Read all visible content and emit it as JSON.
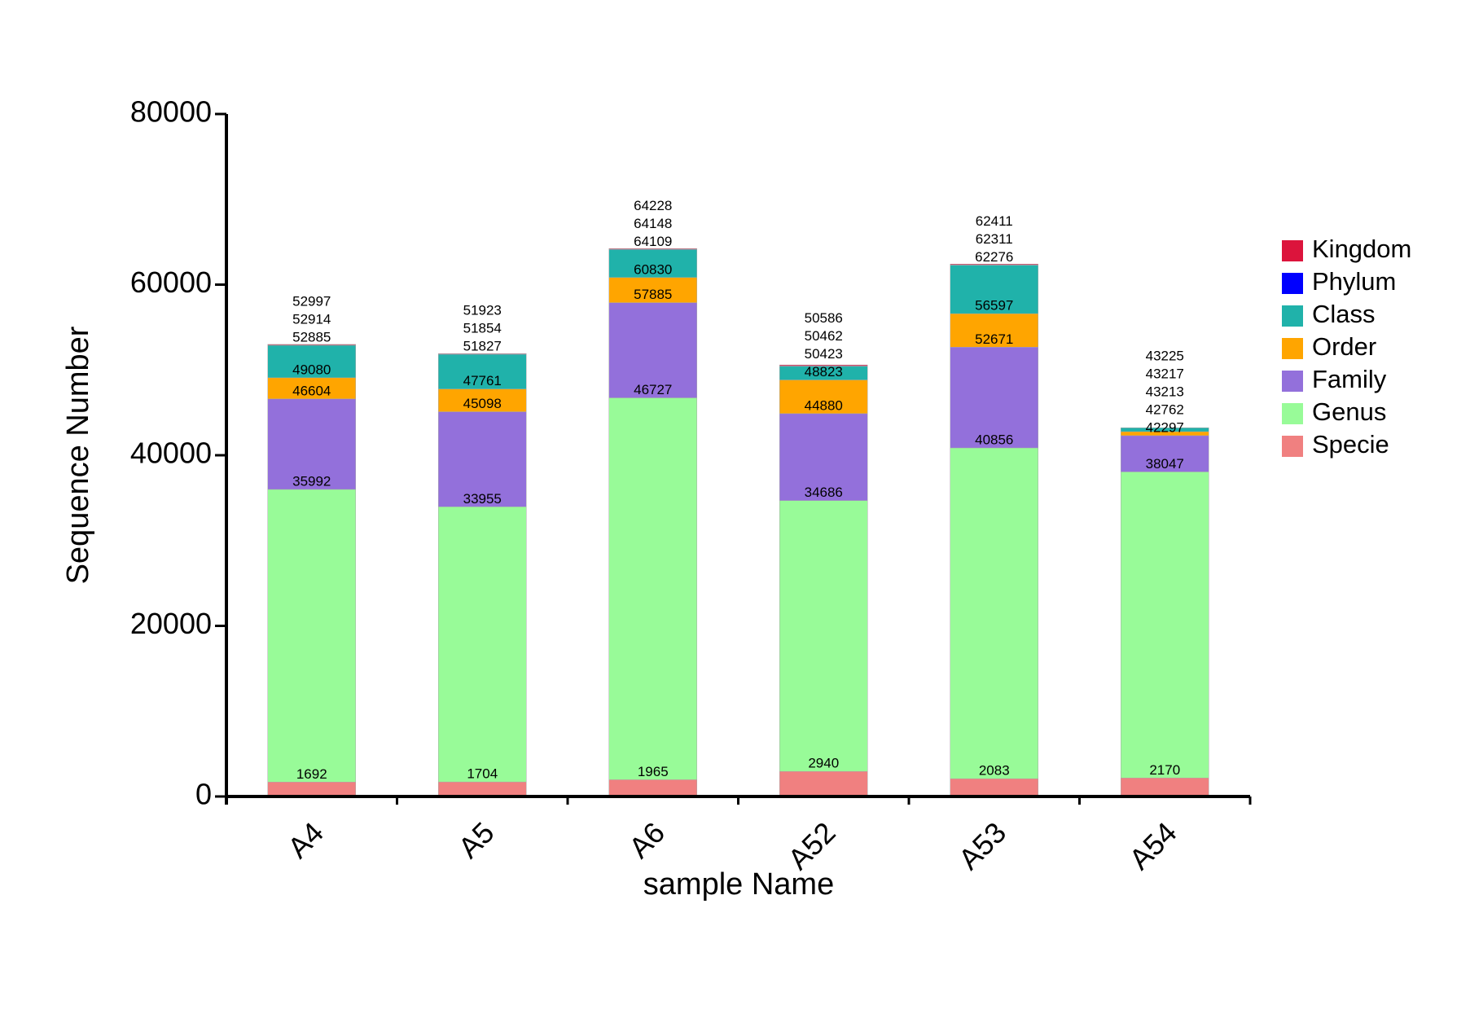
{
  "chart_data": {
    "type": "bar",
    "x_label": "sample Name",
    "y_label": "Sequence Number",
    "categories": [
      "A4",
      "A5",
      "A6",
      "A52",
      "A53",
      "A54"
    ],
    "series": [
      {
        "name": "Kingdom",
        "color": "#dc143c",
        "values": [
          52997,
          51923,
          64228,
          50586,
          62411,
          43225
        ]
      },
      {
        "name": "Phylum",
        "color": "#0000ff",
        "values": [
          52914,
          51854,
          64148,
          50462,
          62311,
          43217
        ]
      },
      {
        "name": "Class",
        "color": "#20b2aa",
        "values": [
          52885,
          51827,
          64109,
          50423,
          62276,
          43213
        ]
      },
      {
        "name": "Order",
        "color": "#ffa500",
        "values": [
          49080,
          47761,
          60830,
          48823,
          56597,
          42762
        ]
      },
      {
        "name": "Family",
        "color": "#9370db",
        "values": [
          46604,
          45098,
          57885,
          44880,
          52671,
          42297
        ]
      },
      {
        "name": "Genus",
        "color": "#98fb98",
        "values": [
          35992,
          33955,
          46727,
          34686,
          40856,
          38047
        ]
      },
      {
        "name": "Specie",
        "color": "#f08080",
        "values": [
          1692,
          1704,
          1965,
          2940,
          2083,
          2170
        ]
      }
    ],
    "ylim": [
      0,
      80000
    ],
    "yticks": [
      0,
      20000,
      40000,
      60000,
      80000
    ]
  }
}
